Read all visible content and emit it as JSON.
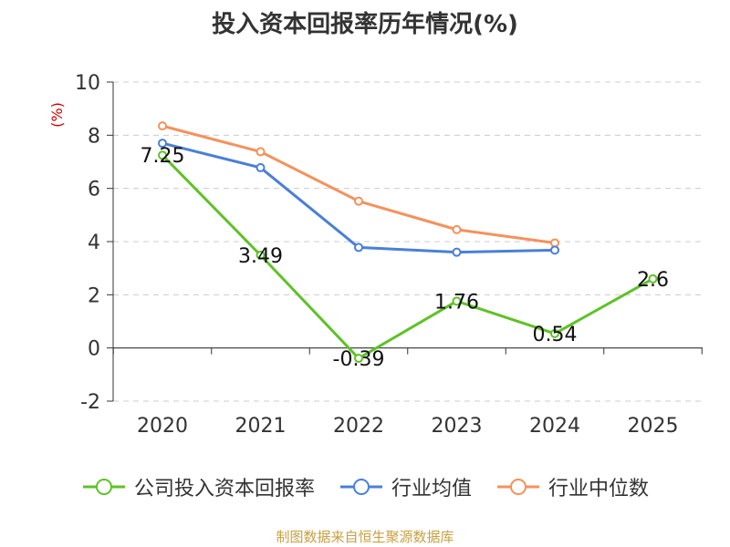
{
  "chart_data": {
    "type": "line",
    "title": "投入资本回报率历年情况(%)",
    "ylabel": "(%)",
    "xlabel": "",
    "categories": [
      "2020",
      "2021",
      "2022",
      "2023",
      "2024",
      "2025"
    ],
    "ylim": [
      -2,
      10
    ],
    "yticks": [
      -2,
      0,
      2,
      4,
      6,
      8,
      10
    ],
    "grid": true,
    "legend_position": "bottom",
    "series": [
      {
        "name": "公司投入资本回报率",
        "color": "#5ec226",
        "values": [
          7.25,
          3.49,
          -0.39,
          1.76,
          0.54,
          2.6
        ],
        "labels": [
          "7.25",
          "3.49",
          "-0.39",
          "1.76",
          "0.54",
          "2.6"
        ]
      },
      {
        "name": "行业均值",
        "color": "#4a7fd9",
        "values": [
          7.7,
          6.78,
          3.78,
          3.6,
          3.68,
          null
        ]
      },
      {
        "name": "行业中位数",
        "color": "#f5915c",
        "values": [
          8.35,
          7.38,
          5.52,
          4.45,
          3.95,
          null
        ]
      }
    ]
  },
  "source": "制图数据来自恒生聚源数据库"
}
